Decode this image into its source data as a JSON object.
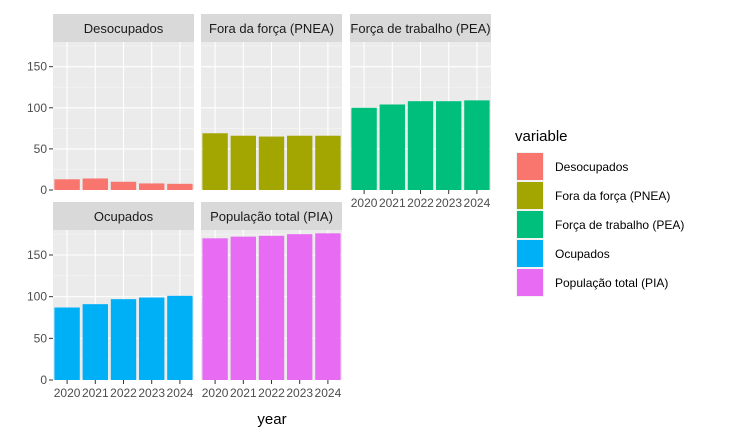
{
  "chart_data": {
    "type": "bar",
    "facet_layout": "wrap-3-columns",
    "x": [
      "2020",
      "2021",
      "2022",
      "2023",
      "2024"
    ],
    "xlabel": "year",
    "ylabel": "",
    "ylim": [
      0,
      180
    ],
    "yticks": [
      0,
      50,
      100,
      150
    ],
    "grid": true,
    "legend": {
      "title": "variable",
      "position": "right"
    },
    "series": [
      {
        "name": "Desocupados",
        "color": "#F8766D",
        "values": [
          13,
          14,
          10,
          8,
          7.5
        ]
      },
      {
        "name": "Fora da força (PNEA)",
        "color": "#A3A500",
        "values": [
          69,
          66,
          65,
          66,
          66
        ]
      },
      {
        "name": "Força de trabalho (PEA)",
        "color": "#00BF7D",
        "values": [
          100,
          104,
          108,
          108,
          109
        ]
      },
      {
        "name": "Ocupados",
        "color": "#00B0F6",
        "values": [
          87,
          91,
          97,
          99,
          101
        ]
      },
      {
        "name": "População total (PIA)",
        "color": "#E76BF3",
        "values": [
          170,
          172,
          173,
          175,
          176
        ]
      }
    ]
  }
}
